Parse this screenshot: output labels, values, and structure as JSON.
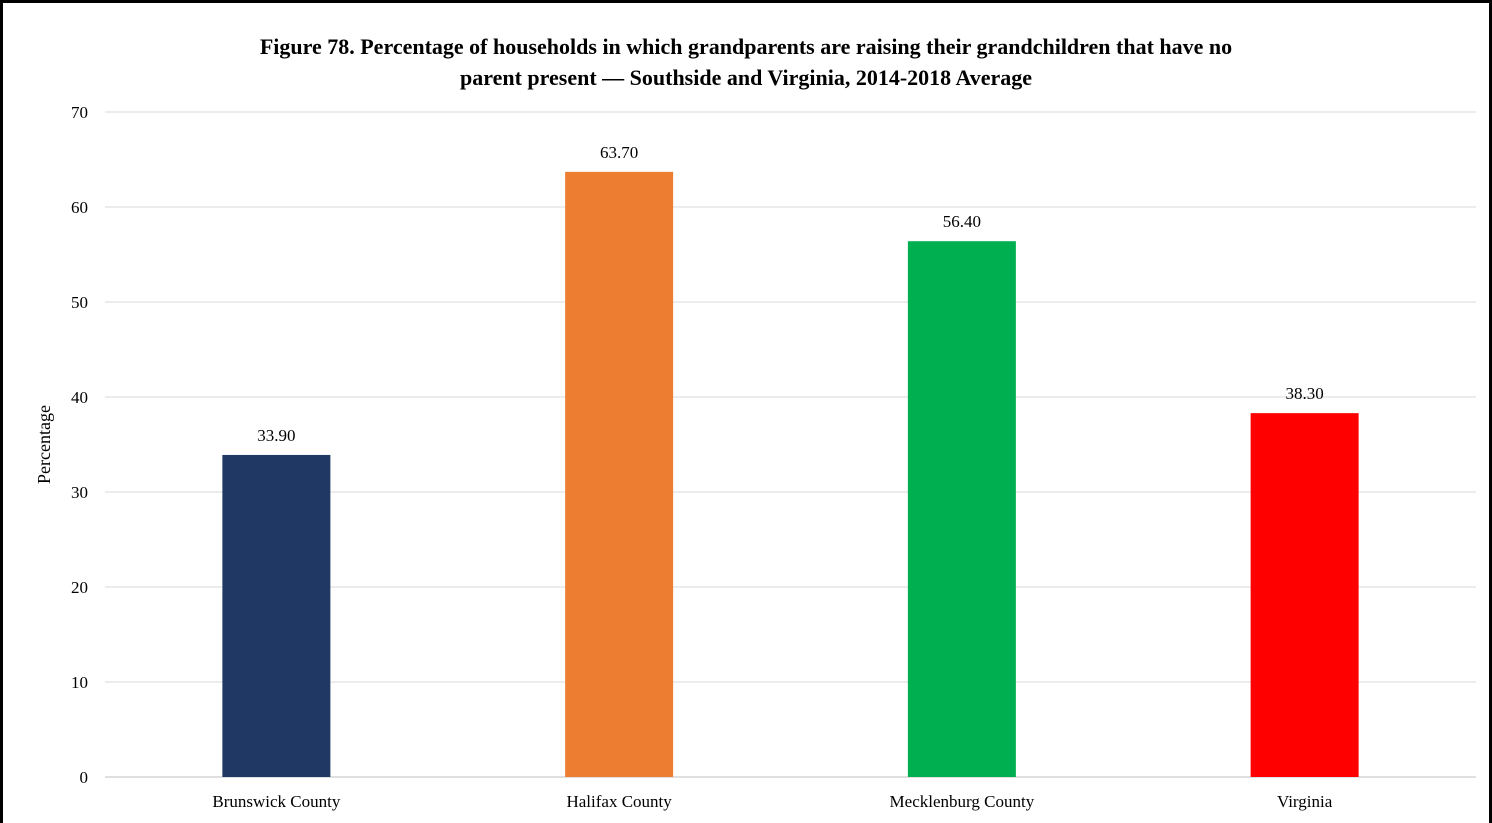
{
  "chart_data": {
    "type": "bar",
    "title_lines": [
      "Figure 78. Percentage of households in which grandparents are raising their grandchildren that have no",
      "parent present — Southside and Virginia, 2014-2018 Average"
    ],
    "xlabel": "",
    "ylabel": "Percentage",
    "categories": [
      "Brunswick County",
      "Halifax County",
      "Mecklenburg County",
      "Virginia"
    ],
    "values": [
      33.9,
      63.7,
      56.4,
      38.3
    ],
    "value_labels": [
      "33.90",
      "63.70",
      "56.40",
      "38.30"
    ],
    "bar_colors": [
      "#203864",
      "#ED7D31",
      "#00B050",
      "#FF0000"
    ],
    "ylim": [
      0,
      70
    ],
    "yticks": [
      0,
      10,
      20,
      30,
      40,
      50,
      60,
      70
    ],
    "grid": true,
    "legend": "none"
  }
}
